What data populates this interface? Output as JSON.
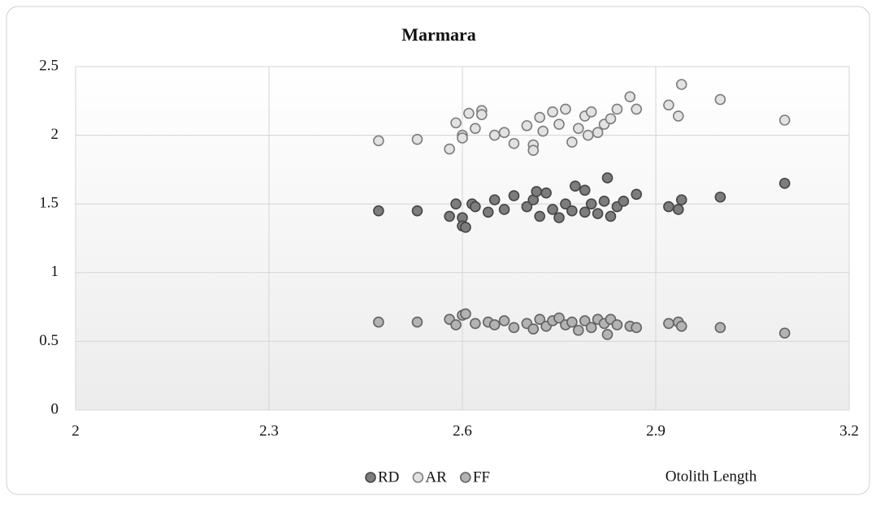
{
  "chart_data": {
    "type": "scatter",
    "title": "Marmara",
    "x_label": "Otolith Length",
    "xlim": [
      2,
      3.2
    ],
    "xticks": [
      2,
      2.3,
      2.6,
      2.9,
      3.2
    ],
    "ylim": [
      0,
      2.5
    ],
    "yticks": [
      0,
      0.5,
      1,
      1.5,
      2,
      2.5
    ],
    "grid": true,
    "series": [
      {
        "name": "RD",
        "color": "#7d7d7d",
        "x": [
          2.47,
          2.53,
          2.58,
          2.59,
          2.6,
          2.6,
          2.605,
          2.615,
          2.62,
          2.64,
          2.65,
          2.665,
          2.68,
          2.7,
          2.71,
          2.715,
          2.72,
          2.73,
          2.74,
          2.75,
          2.76,
          2.77,
          2.775,
          2.79,
          2.79,
          2.8,
          2.81,
          2.82,
          2.825,
          2.83,
          2.84,
          2.85,
          2.87,
          2.92,
          2.935,
          2.94,
          3.0,
          3.1
        ],
        "values": [
          1.45,
          1.45,
          1.41,
          1.5,
          1.4,
          1.34,
          1.33,
          1.5,
          1.48,
          1.44,
          1.53,
          1.46,
          1.56,
          1.48,
          1.53,
          1.59,
          1.41,
          1.58,
          1.46,
          1.4,
          1.5,
          1.45,
          1.63,
          1.6,
          1.44,
          1.5,
          1.43,
          1.52,
          1.69,
          1.41,
          1.48,
          1.52,
          1.57,
          1.48,
          1.46,
          1.53,
          1.55,
          1.65
        ]
      },
      {
        "name": "AR",
        "color": "#e2e2e2",
        "x": [
          2.47,
          2.53,
          2.58,
          2.59,
          2.6,
          2.6,
          2.61,
          2.62,
          2.63,
          2.63,
          2.65,
          2.665,
          2.68,
          2.7,
          2.71,
          2.71,
          2.72,
          2.725,
          2.74,
          2.75,
          2.76,
          2.77,
          2.78,
          2.79,
          2.795,
          2.8,
          2.81,
          2.82,
          2.83,
          2.84,
          2.86,
          2.87,
          2.92,
          2.935,
          2.94,
          3.0,
          3.1
        ],
        "values": [
          1.96,
          1.97,
          1.9,
          2.09,
          2.0,
          1.98,
          2.16,
          2.05,
          2.18,
          2.15,
          2.0,
          2.02,
          1.94,
          2.07,
          1.93,
          1.89,
          2.13,
          2.03,
          2.17,
          2.08,
          2.19,
          1.95,
          2.05,
          2.14,
          2.0,
          2.17,
          2.02,
          2.08,
          2.12,
          2.19,
          2.28,
          2.19,
          2.22,
          2.14,
          2.37,
          2.26,
          2.11
        ]
      },
      {
        "name": "FF",
        "color": "#b3b3b3",
        "x": [
          2.47,
          2.53,
          2.58,
          2.59,
          2.6,
          2.605,
          2.62,
          2.64,
          2.65,
          2.665,
          2.68,
          2.7,
          2.71,
          2.72,
          2.73,
          2.74,
          2.75,
          2.76,
          2.77,
          2.78,
          2.79,
          2.8,
          2.81,
          2.82,
          2.825,
          2.83,
          2.84,
          2.86,
          2.87,
          2.92,
          2.935,
          2.94,
          3.0,
          3.1
        ],
        "values": [
          0.64,
          0.64,
          0.66,
          0.62,
          0.69,
          0.7,
          0.63,
          0.64,
          0.62,
          0.65,
          0.6,
          0.63,
          0.59,
          0.66,
          0.61,
          0.65,
          0.67,
          0.62,
          0.64,
          0.58,
          0.65,
          0.6,
          0.66,
          0.63,
          0.55,
          0.66,
          0.62,
          0.61,
          0.6,
          0.63,
          0.64,
          0.61,
          0.6,
          0.56
        ]
      }
    ]
  }
}
